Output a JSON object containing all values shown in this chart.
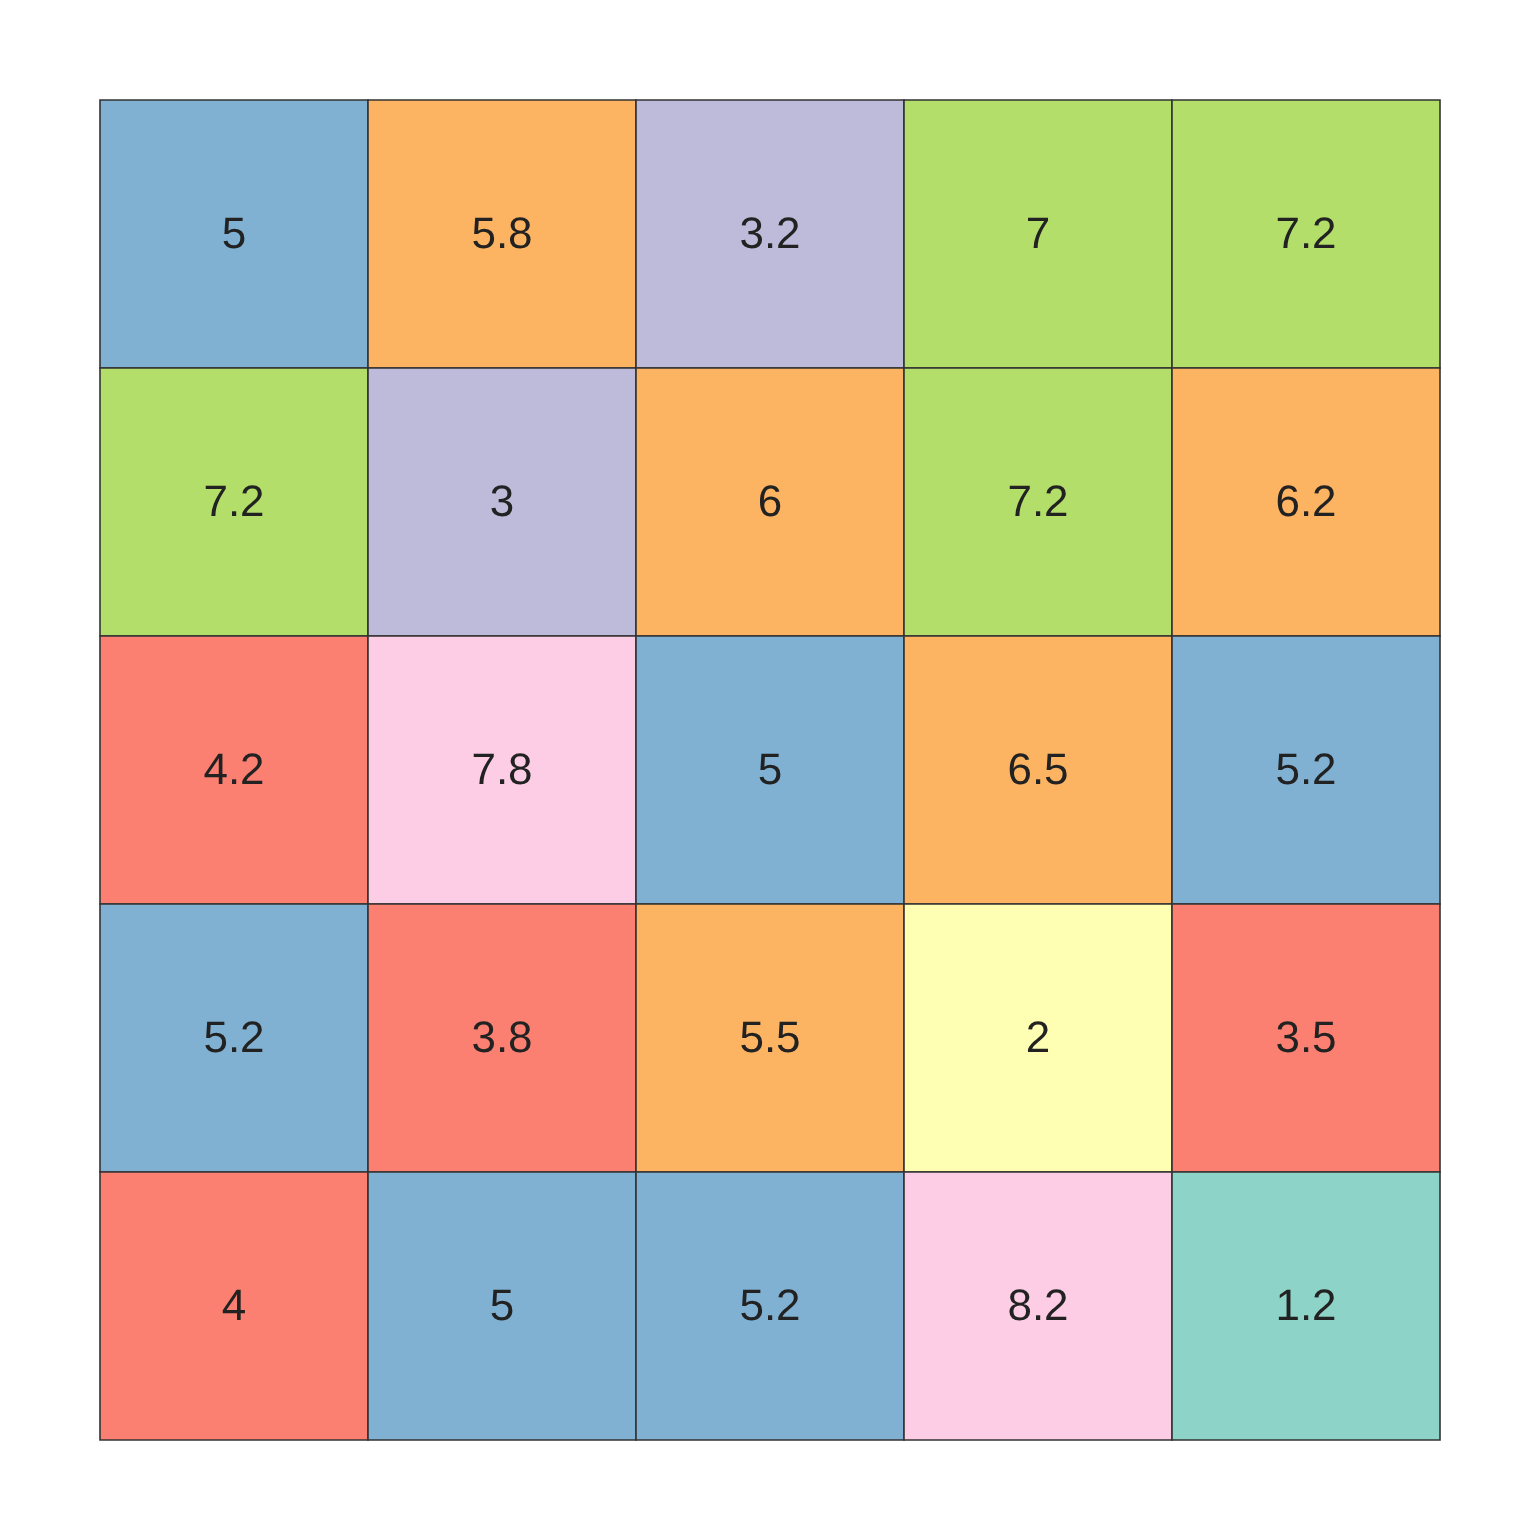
{
  "chart_data": {
    "type": "heatmap",
    "categories": [
      null,
      null,
      null,
      null,
      null
    ],
    "y_categories": [
      null,
      null,
      null,
      null,
      null
    ],
    "cells": [
      [
        5,
        5.8,
        3.2,
        7,
        7.2
      ],
      [
        7.2,
        3,
        6,
        7.2,
        6.2
      ],
      [
        4.2,
        7.8,
        5,
        6.5,
        5.2
      ],
      [
        5.2,
        3.8,
        5.5,
        2,
        3.5
      ],
      [
        4,
        5,
        5.2,
        8.2,
        1.2
      ]
    ],
    "colors": [
      [
        "#80b1d3",
        "#fdb462",
        "#bebada",
        "#b3de69",
        "#b3de69"
      ],
      [
        "#b3de69",
        "#bebada",
        "#fdb462",
        "#b3de69",
        "#fdb462"
      ],
      [
        "#fb8072",
        "#fccde5",
        "#80b1d3",
        "#fdb462",
        "#80b1d3"
      ],
      [
        "#80b1d3",
        "#fb8072",
        "#fdb462",
        "#ffffb3",
        "#fb8072"
      ],
      [
        "#fb8072",
        "#80b1d3",
        "#80b1d3",
        "#fccde5",
        "#8dd3c7"
      ]
    ],
    "data_labels": true
  }
}
